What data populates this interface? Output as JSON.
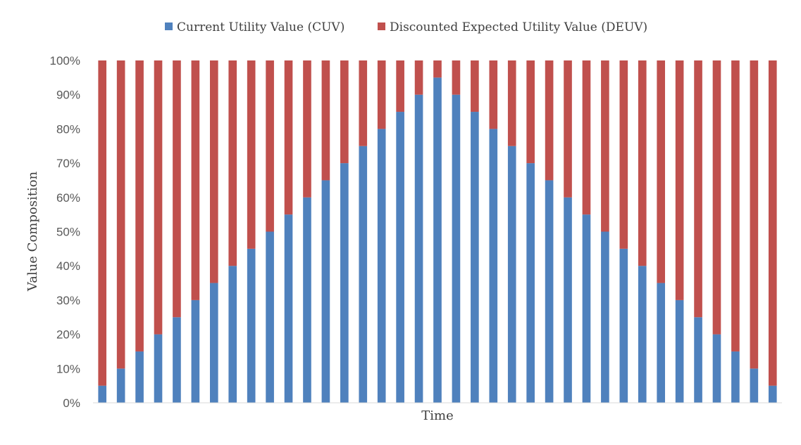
{
  "chart_data": {
    "type": "bar",
    "stacked": true,
    "percent_stacked": true,
    "xlabel": "Time",
    "ylabel": "Value Composition",
    "ylim": [
      0,
      100
    ],
    "y_ticks": [
      "0%",
      "10%",
      "20%",
      "30%",
      "40%",
      "50%",
      "60%",
      "70%",
      "80%",
      "90%",
      "100%"
    ],
    "grid": false,
    "legend_position": "top",
    "series": [
      {
        "name": "Current Utility Value (CUV)",
        "color": "#4F81BD",
        "values": [
          5,
          10,
          15,
          20,
          25,
          30,
          35,
          40,
          45,
          50,
          55,
          60,
          65,
          70,
          75,
          80,
          85,
          90,
          95,
          90,
          85,
          80,
          75,
          70,
          65,
          60,
          55,
          50,
          45,
          40,
          35,
          30,
          25,
          20,
          15,
          10,
          5
        ]
      },
      {
        "name": "Discounted Expected Utility Value (DEUV)",
        "color": "#C0504D",
        "values": [
          95,
          90,
          85,
          80,
          75,
          70,
          65,
          60,
          55,
          50,
          45,
          40,
          35,
          30,
          25,
          20,
          15,
          10,
          5,
          10,
          15,
          20,
          25,
          30,
          35,
          40,
          45,
          50,
          55,
          60,
          65,
          70,
          75,
          80,
          85,
          90,
          95
        ]
      }
    ]
  }
}
